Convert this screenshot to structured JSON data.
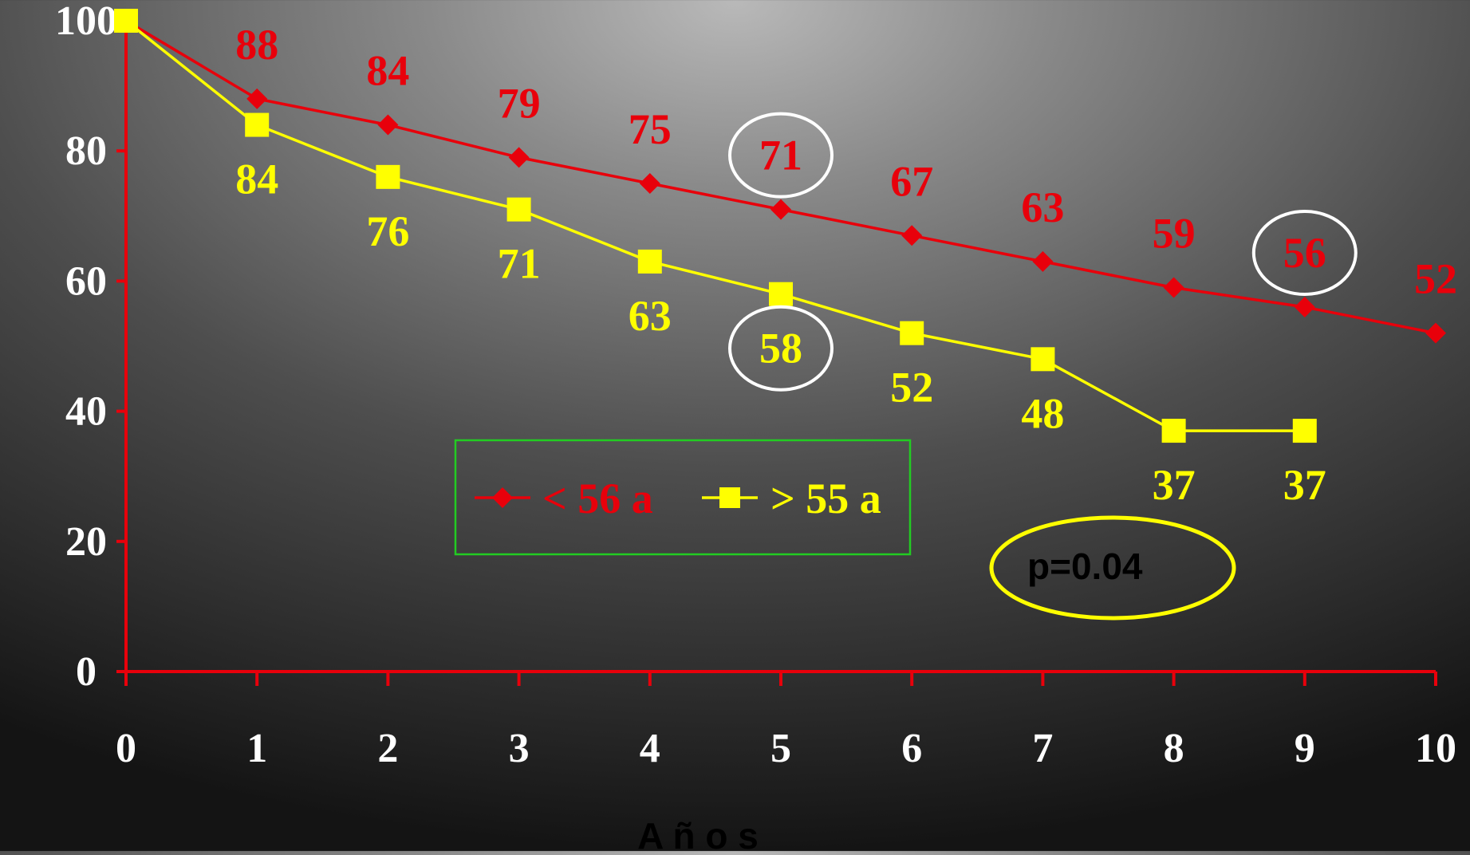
{
  "chart_data": {
    "type": "line",
    "title": "",
    "xlabel": "A ñ o s",
    "ylabel": "",
    "x": [
      0,
      1,
      2,
      3,
      4,
      5,
      6,
      7,
      8,
      9,
      10
    ],
    "xlim": [
      0,
      10
    ],
    "ylim": [
      0,
      100
    ],
    "yticks": [
      0,
      20,
      40,
      60,
      80,
      100
    ],
    "grid": false,
    "legend_position": "center",
    "series": [
      {
        "name": "< 56 a",
        "color": "#e8000b",
        "marker": "diamond",
        "x": [
          0,
          1,
          2,
          3,
          4,
          5,
          6,
          7,
          8,
          9,
          10
        ],
        "values": [
          100,
          88,
          84,
          79,
          75,
          71,
          67,
          63,
          59,
          56,
          52
        ],
        "labels": [
          null,
          "88",
          "84",
          "79",
          "75",
          "71",
          "67",
          "63",
          "59",
          "56",
          "52"
        ]
      },
      {
        "name": "> 55 a",
        "color": "#ffff00",
        "marker": "square",
        "x": [
          0,
          1,
          2,
          3,
          4,
          5,
          6,
          7,
          8,
          9
        ],
        "values": [
          100,
          84,
          76,
          71,
          63,
          58,
          52,
          48,
          37,
          37
        ],
        "labels": [
          null,
          "84",
          "76",
          "71",
          "63",
          "58",
          "52",
          "48",
          "37",
          "37"
        ]
      }
    ],
    "circled_points": [
      {
        "series": 0,
        "x": 5
      },
      {
        "series": 0,
        "x": 9
      },
      {
        "series": 1,
        "x": 5
      }
    ],
    "annotation": {
      "text": "p=0.04",
      "circle_color": "#ffff00"
    }
  },
  "colors": {
    "axis": "#e8000b",
    "tick_text": "#ffffff",
    "legend_border": "#22cc22",
    "highlight_circle": "#ffffff"
  }
}
